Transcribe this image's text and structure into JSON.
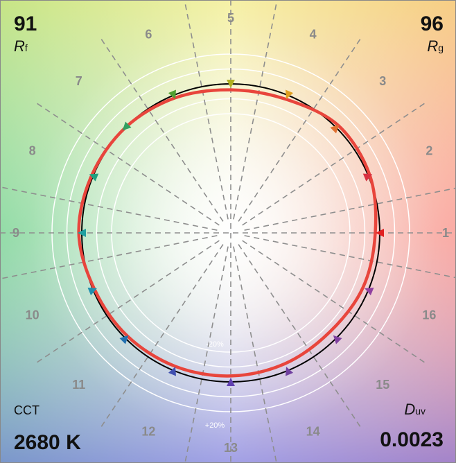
{
  "metrics": {
    "rf_value": "91",
    "rf_symbol": "R",
    "rf_sub": "f",
    "rg_value": "96",
    "rg_symbol": "R",
    "rg_sub": "g",
    "cct_label": "CCT",
    "cct_value": "2680 K",
    "duv_symbol": "D",
    "duv_sub": "uv",
    "duv_value": "0.0023"
  },
  "chart_data": {
    "type": "polar-line",
    "bins": [
      "1",
      "2",
      "3",
      "4",
      "5",
      "6",
      "7",
      "8",
      "9",
      "10",
      "11",
      "12",
      "13",
      "14",
      "15",
      "16"
    ],
    "ring_labels": [
      "-20%",
      "+20%"
    ],
    "reference_radius": 1.0,
    "test_radius": [
      0.97,
      1.01,
      1.02,
      0.97,
      0.96,
      0.98,
      1.0,
      1.01,
      1.02,
      0.99,
      0.98,
      0.97,
      0.96,
      0.95,
      0.94,
      0.96
    ],
    "series": [
      {
        "color": "#000000",
        "role": "reference"
      },
      {
        "color": "#e8453c",
        "role": "test"
      }
    ],
    "arrow_colors": [
      "#e02020",
      "#d83040",
      "#e07030",
      "#e0a020",
      "#b0b020",
      "#50a030",
      "#30a060",
      "#20a080",
      "#20a0a0",
      "#2090b0",
      "#2070b0",
      "#4050b0",
      "#6040b0",
      "#7040a0",
      "#8040a0",
      "#9040a0"
    ]
  }
}
